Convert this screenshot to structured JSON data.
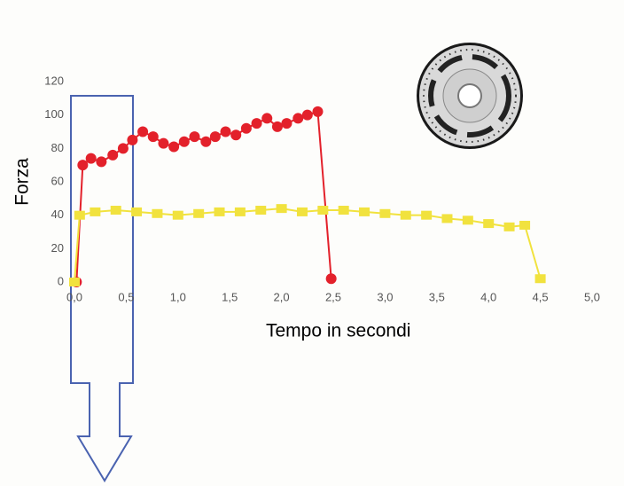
{
  "chart_data": {
    "type": "line",
    "x_label": "Tempo in secondi",
    "y_label": "Forza",
    "xlim": [
      0,
      5
    ],
    "ylim": [
      0,
      120
    ],
    "xticks": [
      {
        "value": 0,
        "label": "0,0"
      },
      {
        "value": 0.5,
        "label": "0,5"
      },
      {
        "value": 1,
        "label": "1,0"
      },
      {
        "value": 1.5,
        "label": "1,5"
      },
      {
        "value": 2,
        "label": "2,0"
      },
      {
        "value": 2.5,
        "label": "2,5"
      },
      {
        "value": 3,
        "label": "3,0"
      },
      {
        "value": 3.5,
        "label": "3,5"
      },
      {
        "value": 4,
        "label": "4,0"
      },
      {
        "value": 4.5,
        "label": "4,5"
      },
      {
        "value": 5,
        "label": "5,0"
      }
    ],
    "yticks": [
      0,
      20,
      40,
      60,
      80,
      100,
      120
    ],
    "series": [
      {
        "color": "#e3212b",
        "marker": "circle",
        "x": [
          0.02,
          0.08,
          0.16,
          0.26,
          0.37,
          0.47,
          0.56,
          0.66,
          0.76,
          0.86,
          0.96,
          1.06,
          1.16,
          1.27,
          1.36,
          1.46,
          1.56,
          1.66,
          1.76,
          1.86,
          1.96,
          2.05,
          2.16,
          2.25,
          2.35,
          2.48
        ],
        "values": [
          0,
          70,
          74,
          72,
          76,
          80,
          85,
          90,
          87,
          83,
          81,
          84,
          87,
          84,
          87,
          90,
          88,
          92,
          95,
          98,
          93,
          95,
          98,
          100,
          102,
          2
        ]
      },
      {
        "color": "#f1e23e",
        "marker": "square",
        "x": [
          0,
          0.05,
          0.2,
          0.4,
          0.6,
          0.8,
          1.0,
          1.2,
          1.4,
          1.6,
          1.8,
          2.0,
          2.2,
          2.4,
          2.6,
          2.8,
          3.0,
          3.2,
          3.4,
          3.6,
          3.8,
          4.0,
          4.2,
          4.35,
          4.5
        ],
        "values": [
          0,
          40,
          42,
          43,
          42,
          41,
          40,
          41,
          42,
          42,
          43,
          44,
          42,
          43,
          43,
          42,
          41,
          40,
          40,
          38,
          37,
          35,
          33,
          34,
          2
        ]
      }
    ]
  }
}
